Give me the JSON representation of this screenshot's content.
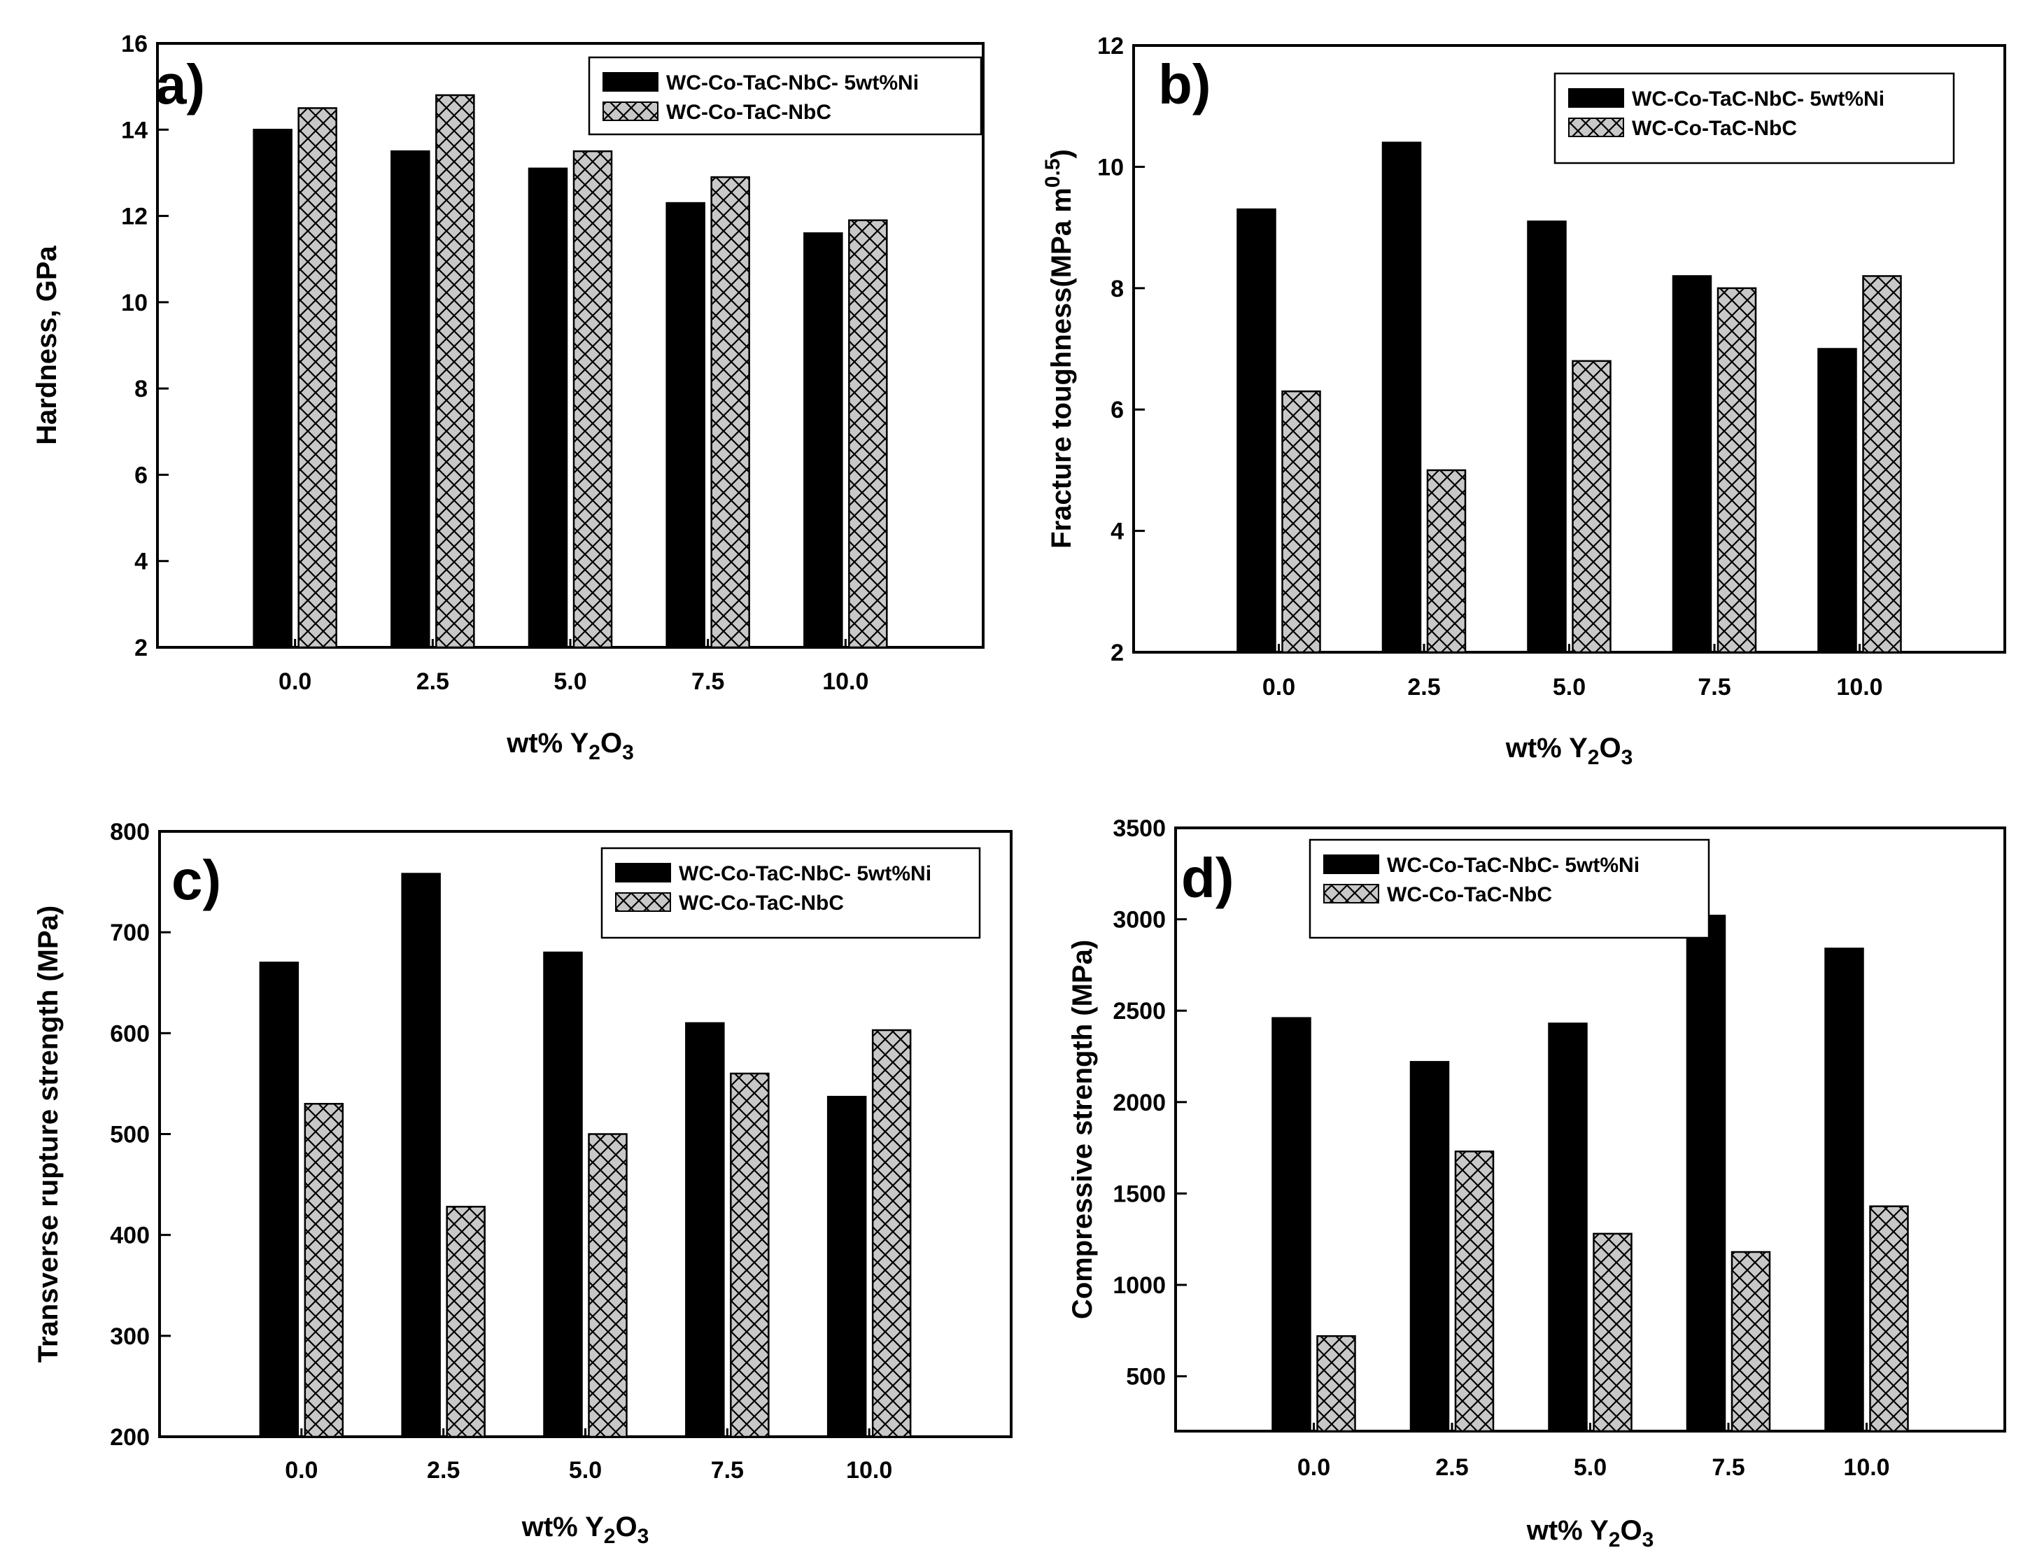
{
  "chart_data": [
    {
      "type": "bar",
      "panel_label": "a)",
      "categories": [
        "0.0",
        "2.5",
        "5.0",
        "7.5",
        "10.0"
      ],
      "series": [
        {
          "name": "WC-Co-TaC-NbC- 5wt%Ni",
          "values": [
            14.0,
            13.5,
            13.1,
            12.3,
            11.6
          ],
          "fill": "#000000"
        },
        {
          "name": "WC-Co-TaC-NbC",
          "values": [
            14.5,
            14.8,
            13.5,
            12.9,
            11.9
          ],
          "fill": "#c8c8c8"
        }
      ],
      "ylabel": "Hardness, GPa",
      "xlabel": {
        "prefix": "wt% Y",
        "sub1": "2",
        "mid": "O",
        "sub2": "3"
      },
      "ylim": [
        2,
        16
      ],
      "yticks": [
        "2",
        "4",
        "6",
        "8",
        "10",
        "12",
        "14",
        "16"
      ],
      "ytick_values": [
        2,
        4,
        6,
        8,
        10,
        12,
        14,
        16
      ],
      "legend_position": "top-right"
    },
    {
      "type": "bar",
      "panel_label": "b)",
      "categories": [
        "0.0",
        "2.5",
        "5.0",
        "7.5",
        "10.0"
      ],
      "series": [
        {
          "name": "WC-Co-TaC-NbC- 5wt%Ni",
          "values": [
            9.3,
            10.4,
            9.1,
            8.2,
            7.0
          ],
          "fill": "#000000"
        },
        {
          "name": "WC-Co-TaC-NbC",
          "values": [
            6.3,
            5.0,
            6.8,
            8.0,
            8.2
          ],
          "fill": "#c8c8c8"
        }
      ],
      "ylabel": {
        "main": "Fracture toughness(MPa m",
        "sup": "0.5",
        "close": ")"
      },
      "xlabel": {
        "prefix": "wt% Y",
        "sub1": "2",
        "mid": "O",
        "sub2": "3"
      },
      "ylim": [
        2,
        12
      ],
      "yticks": [
        "2",
        "4",
        "6",
        "8",
        "10",
        "12"
      ],
      "ytick_values": [
        2,
        4,
        6,
        8,
        10,
        12
      ],
      "legend_position": "top-right"
    },
    {
      "type": "bar",
      "panel_label": "c)",
      "categories": [
        "0.0",
        "2.5",
        "5.0",
        "7.5",
        "10.0"
      ],
      "series": [
        {
          "name": "WC-Co-TaC-NbC- 5wt%Ni",
          "values": [
            670,
            758,
            680,
            610,
            537
          ],
          "fill": "#000000"
        },
        {
          "name": "WC-Co-TaC-NbC",
          "values": [
            530,
            428,
            500,
            560,
            603
          ],
          "fill": "#c8c8c8"
        }
      ],
      "ylabel": "Transverse rupture strength (MPa)",
      "xlabel": {
        "prefix": "wt% Y",
        "sub1": "2",
        "mid": "O",
        "sub2": "3"
      },
      "ylim": [
        200,
        800
      ],
      "yticks": [
        "200",
        "300",
        "400",
        "500",
        "600",
        "700",
        "800"
      ],
      "ytick_values": [
        200,
        300,
        400,
        500,
        600,
        700,
        800
      ],
      "legend_position": "top-right"
    },
    {
      "type": "bar",
      "panel_label": "d)",
      "categories": [
        "0.0",
        "2.5",
        "5.0",
        "7.5",
        "10.0"
      ],
      "series": [
        {
          "name": "WC-Co-TaC-NbC- 5wt%Ni",
          "values": [
            2460,
            2220,
            2430,
            3020,
            2840
          ],
          "fill": "#000000"
        },
        {
          "name": "WC-Co-TaC-NbC",
          "values": [
            720,
            1730,
            1280,
            1180,
            1430
          ],
          "fill": "#c8c8c8"
        }
      ],
      "ylabel": "Compressive strength (MPa)",
      "xlabel": {
        "prefix": "wt% Y",
        "sub1": "2",
        "mid": "O",
        "sub2": "3"
      },
      "ylim": [
        200,
        3500
      ],
      "yticks": [
        "500",
        "1000",
        "1500",
        "2000",
        "2500",
        "3000",
        "3500"
      ],
      "ytick_values": [
        500,
        1000,
        1500,
        2000,
        2500,
        3000,
        3500
      ],
      "legend_position": "top-left"
    }
  ]
}
